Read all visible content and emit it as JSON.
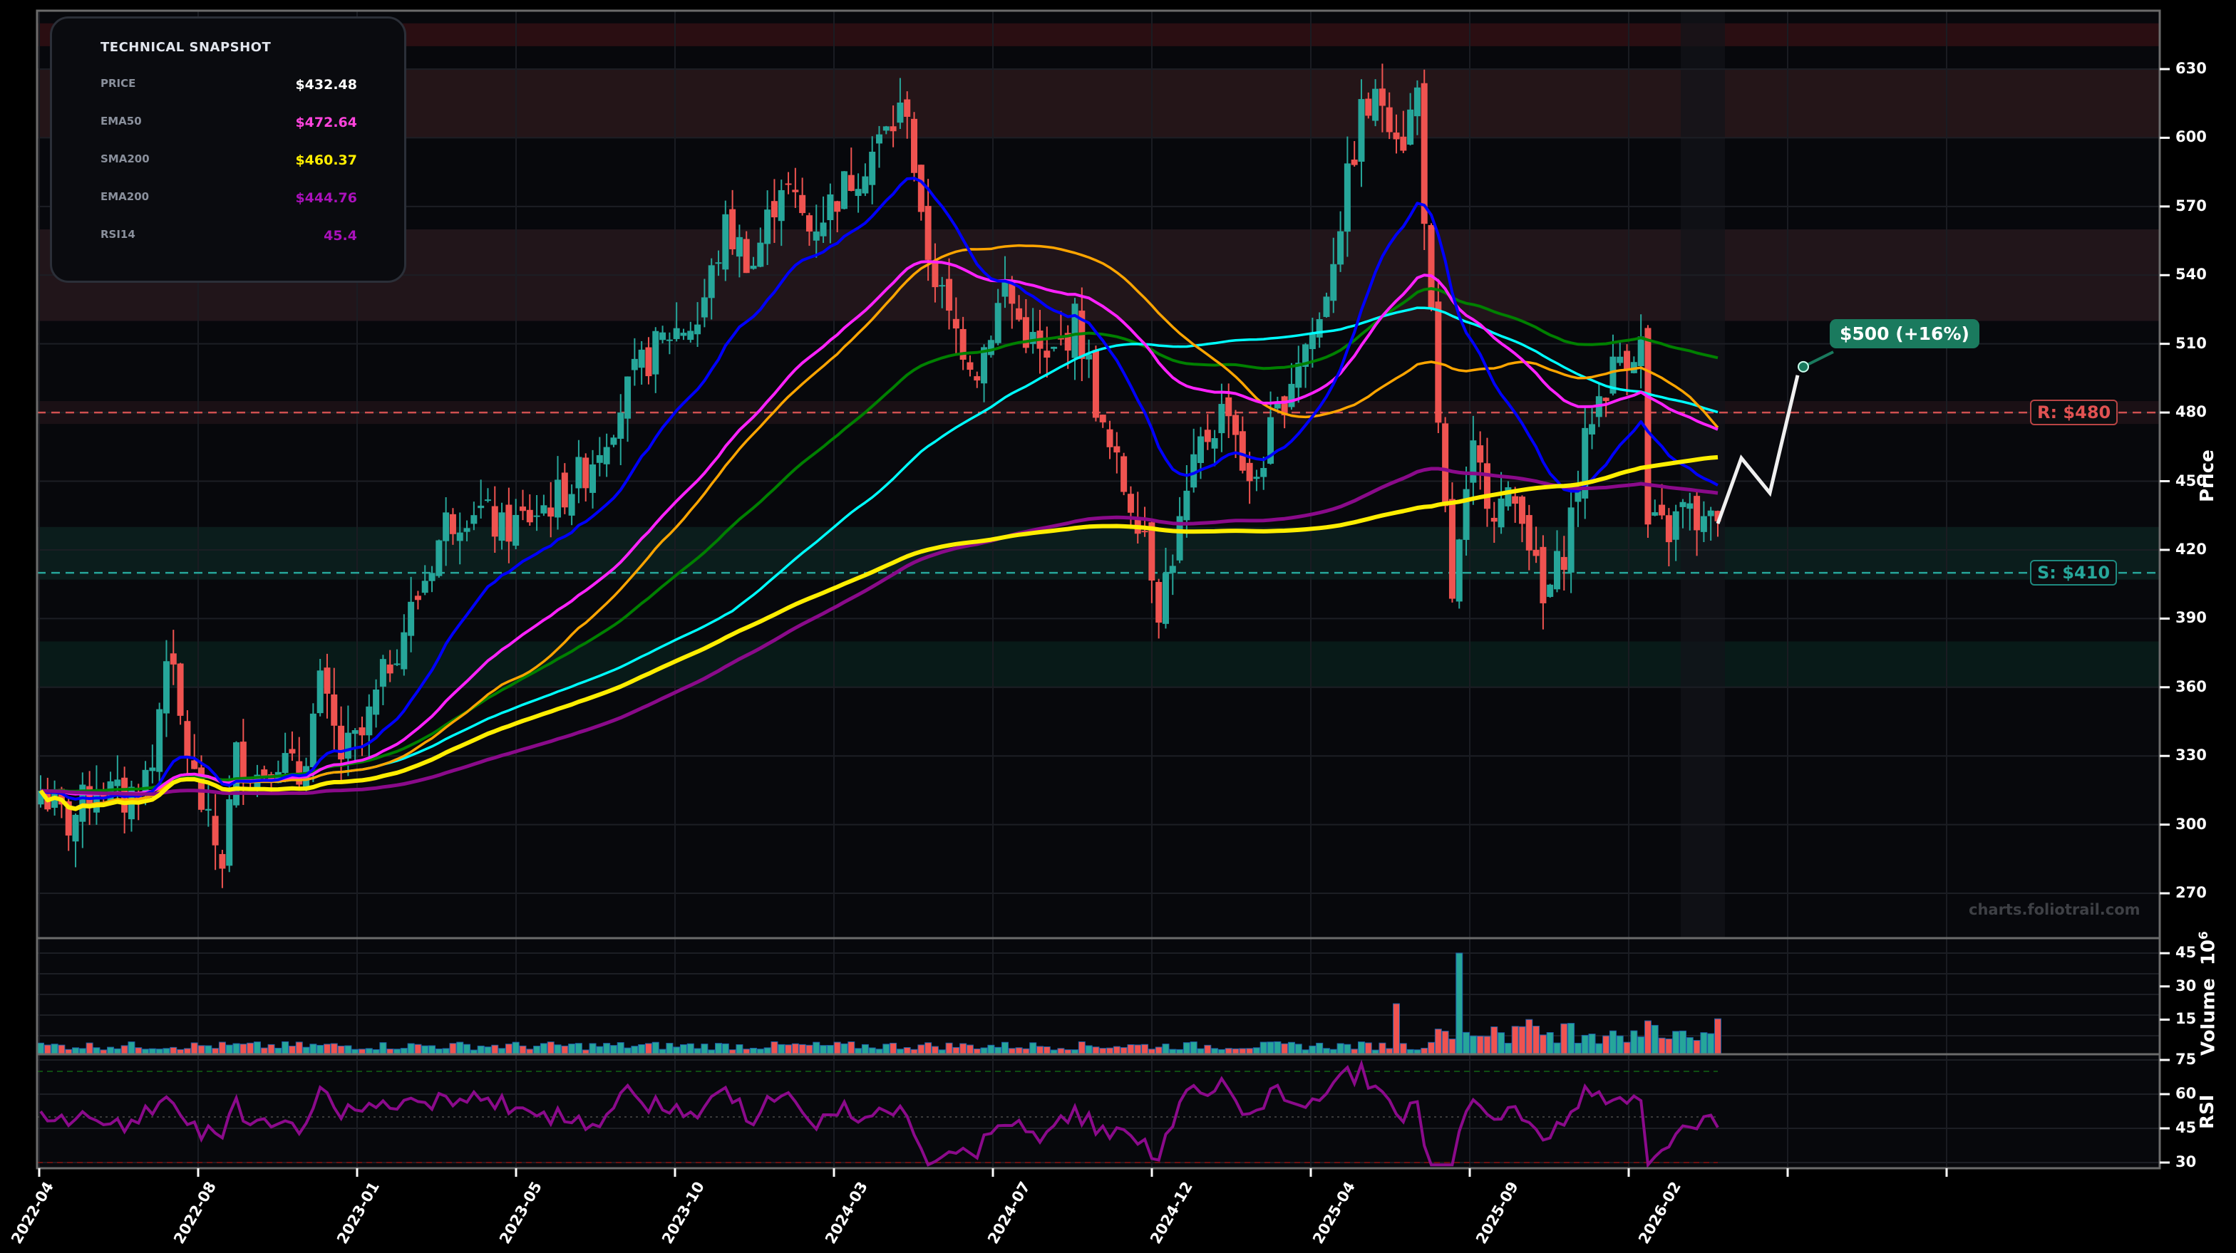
{
  "snapshot": {
    "title": "TECHNICAL SNAPSHOT",
    "rows": [
      {
        "label": "PRICE",
        "value": "$432.48",
        "color": "#ffffff"
      },
      {
        "label": "EMA50",
        "value": "$472.64",
        "color": "#ff44dd"
      },
      {
        "label": "SMA200",
        "value": "$460.37",
        "color": "#ffee00"
      },
      {
        "label": "EMA200",
        "value": "$444.76",
        "color": "#aa11bb"
      },
      {
        "label": "RSI14",
        "value": "45.4",
        "color": "#aa11bb"
      }
    ]
  },
  "target": {
    "label": "$500 (+16%)",
    "price": 500,
    "color": "#1a7a5e"
  },
  "levels": {
    "resistance": {
      "label": "R: $480",
      "price": 480,
      "color": "#e05252"
    },
    "support": {
      "label": "S: $410",
      "price": 410,
      "color": "#26a69a"
    }
  },
  "watermark": "charts.foliotrail.com",
  "axes": {
    "price_title": "Price",
    "volume_title": "Volume",
    "volume_exp": "10",
    "volume_exp_sup": "6",
    "rsi_title": "RSI",
    "price_ticks": [
      "630",
      "600",
      "570",
      "540",
      "510",
      "480",
      "450",
      "420",
      "390",
      "360",
      "330",
      "300",
      "270"
    ],
    "volume_ticks": [
      "45",
      "30",
      "15"
    ],
    "rsi_ticks": [
      "75",
      "60",
      "45",
      "30"
    ],
    "x_ticks": [
      "2022-04",
      "2022-08",
      "2023-01",
      "2023-05",
      "2023-10",
      "2024-03",
      "2024-07",
      "2024-12",
      "2025-04",
      "2025-09",
      "2026-02"
    ]
  },
  "chart_data": {
    "type": "candlestick",
    "title": "Technical Snapshot",
    "xlabel": "",
    "ylabel": "Price",
    "ylim": [
      250,
      650
    ],
    "grid": true,
    "x_tick_labels": [
      "2022-04",
      "2022-08",
      "2023-01",
      "2023-05",
      "2023-10",
      "2024-03",
      "2024-07",
      "2024-12",
      "2025-04",
      "2025-09",
      "2026-02"
    ],
    "close_path": [
      [
        0,
        315
      ],
      [
        4,
        300
      ],
      [
        8,
        318
      ],
      [
        12,
        310
      ],
      [
        16,
        325
      ],
      [
        18,
        378
      ],
      [
        20,
        345
      ],
      [
        22,
        320
      ],
      [
        24,
        298
      ],
      [
        26,
        285
      ],
      [
        28,
        330
      ],
      [
        31,
        322
      ],
      [
        34,
        330
      ],
      [
        37,
        320
      ],
      [
        40,
        360
      ],
      [
        43,
        330
      ],
      [
        46,
        338
      ],
      [
        50,
        372
      ],
      [
        54,
        400
      ],
      [
        58,
        432
      ],
      [
        62,
        440
      ],
      [
        66,
        428
      ],
      [
        70,
        435
      ],
      [
        74,
        443
      ],
      [
        78,
        455
      ],
      [
        82,
        478
      ],
      [
        86,
        500
      ],
      [
        90,
        515
      ],
      [
        94,
        520
      ],
      [
        98,
        560
      ],
      [
        102,
        545
      ],
      [
        106,
        582
      ],
      [
        110,
        560
      ],
      [
        114,
        575
      ],
      [
        118,
        590
      ],
      [
        122,
        606
      ],
      [
        124,
        615
      ],
      [
        126,
        560
      ],
      [
        130,
        520
      ],
      [
        134,
        500
      ],
      [
        138,
        535
      ],
      [
        140,
        520
      ],
      [
        144,
        500
      ],
      [
        148,
        520
      ],
      [
        150,
        500
      ],
      [
        152,
        470
      ],
      [
        155,
        448
      ],
      [
        158,
        430
      ],
      [
        160,
        396
      ],
      [
        163,
        430
      ],
      [
        166,
        465
      ],
      [
        170,
        485
      ],
      [
        173,
        445
      ],
      [
        176,
        470
      ],
      [
        180,
        505
      ],
      [
        183,
        520
      ],
      [
        187,
        580
      ],
      [
        189,
        610
      ],
      [
        192,
        617
      ],
      [
        195,
        600
      ],
      [
        197,
        620
      ],
      [
        200,
        468
      ],
      [
        202,
        400
      ],
      [
        205,
        460
      ],
      [
        208,
        440
      ],
      [
        212,
        440
      ],
      [
        215,
        395
      ],
      [
        218,
        420
      ],
      [
        222,
        480
      ],
      [
        226,
        505
      ],
      [
        229,
        510
      ],
      [
        230,
        430
      ],
      [
        233,
        428
      ],
      [
        235,
        438
      ],
      [
        238,
        430
      ],
      [
        240,
        432.48
      ]
    ],
    "series": [
      {
        "name": "EMA50",
        "color": "#ff22ff",
        "last": 472.64
      },
      {
        "name": "SMA200",
        "color": "#ffee00",
        "last": 460.37
      },
      {
        "name": "EMA200",
        "color": "#8a0a8a",
        "last": 444.76
      },
      {
        "name": "EMA20",
        "color": "#0000ff"
      },
      {
        "name": "SMA50",
        "color": "#ffa500"
      },
      {
        "name": "SMA100",
        "color": "#00ffff"
      },
      {
        "name": "EMA100",
        "color": "#008000"
      }
    ],
    "volume": {
      "ylabel": "Volume (10^6)",
      "ylim": [
        0,
        50
      ],
      "typical": 3,
      "max_spike": 48
    },
    "rsi": {
      "ylabel": "RSI",
      "ylim": [
        28,
        77
      ],
      "overbought": 70,
      "oversold": 30,
      "last": 45.4
    },
    "annotations": [
      {
        "text": "R: $480",
        "y": 480
      },
      {
        "text": "S: $410",
        "y": 410
      },
      {
        "text": "$500 (+16%)",
        "y": 500
      }
    ]
  }
}
